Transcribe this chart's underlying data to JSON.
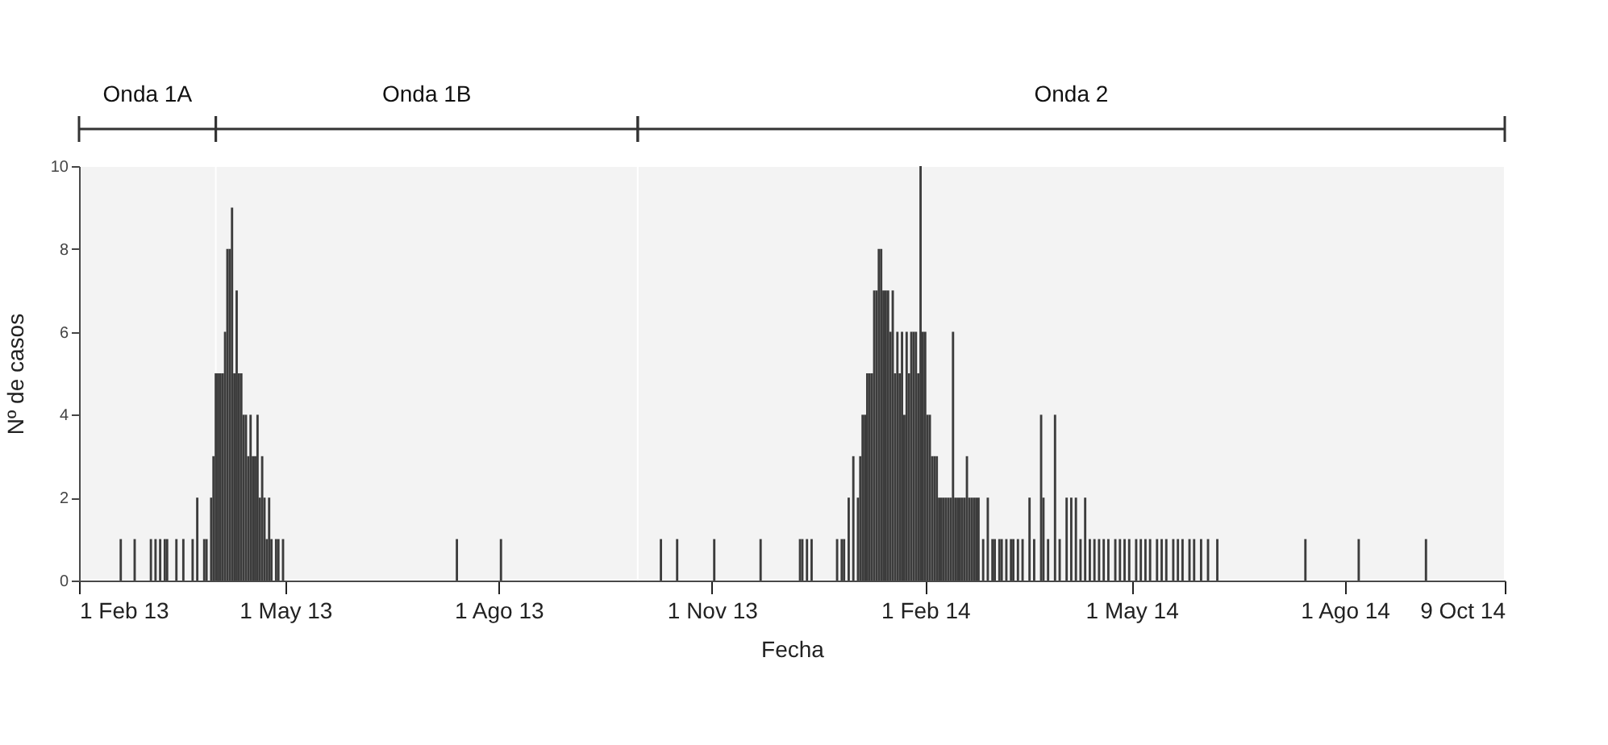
{
  "chart_data": {
    "type": "bar",
    "xlabel": "Fecha",
    "ylabel": "Nº de casos",
    "x": [
      "2013-02-19",
      "2013-02-25",
      "2013-03-04",
      "2013-03-06",
      "2013-03-08",
      "2013-03-10",
      "2013-03-11",
      "2013-03-15",
      "2013-03-18",
      "2013-03-22",
      "2013-03-24",
      "2013-03-27",
      "2013-03-28",
      "2013-03-30",
      "2013-03-31",
      "2013-04-01",
      "2013-04-02",
      "2013-04-03",
      "2013-04-04",
      "2013-04-05",
      "2013-04-06",
      "2013-04-07",
      "2013-04-08",
      "2013-04-09",
      "2013-04-10",
      "2013-04-11",
      "2013-04-12",
      "2013-04-13",
      "2013-04-14",
      "2013-04-15",
      "2013-04-16",
      "2013-04-17",
      "2013-04-18",
      "2013-04-19",
      "2013-04-20",
      "2013-04-21",
      "2013-04-22",
      "2013-04-23",
      "2013-04-24",
      "2013-04-25",
      "2013-04-27",
      "2013-04-28",
      "2013-04-30",
      "2013-07-14",
      "2013-08-02",
      "2013-10-10",
      "2013-10-17",
      "2013-11-02",
      "2013-11-22",
      "2013-12-09",
      "2013-12-10",
      "2013-12-12",
      "2013-12-14",
      "2013-12-25",
      "2013-12-27",
      "2013-12-28",
      "2013-12-30",
      "2014-01-01",
      "2014-01-03",
      "2014-01-04",
      "2014-01-05",
      "2014-01-06",
      "2014-01-07",
      "2014-01-08",
      "2014-01-09",
      "2014-01-10",
      "2014-01-11",
      "2014-01-12",
      "2014-01-13",
      "2014-01-14",
      "2014-01-15",
      "2014-01-16",
      "2014-01-17",
      "2014-01-18",
      "2014-01-19",
      "2014-01-20",
      "2014-01-21",
      "2014-01-22",
      "2014-01-23",
      "2014-01-24",
      "2014-01-25",
      "2014-01-26",
      "2014-01-27",
      "2014-01-28",
      "2014-01-29",
      "2014-01-30",
      "2014-01-31",
      "2014-02-01",
      "2014-02-02",
      "2014-02-03",
      "2014-02-04",
      "2014-02-05",
      "2014-02-06",
      "2014-02-07",
      "2014-02-08",
      "2014-02-09",
      "2014-02-10",
      "2014-02-11",
      "2014-02-12",
      "2014-02-13",
      "2014-02-14",
      "2014-02-15",
      "2014-02-16",
      "2014-02-17",
      "2014-02-18",
      "2014-02-19",
      "2014-02-20",
      "2014-02-21",
      "2014-02-22",
      "2014-02-23",
      "2014-02-24",
      "2014-02-26",
      "2014-02-28",
      "2014-03-02",
      "2014-03-03",
      "2014-03-05",
      "2014-03-06",
      "2014-03-08",
      "2014-03-10",
      "2014-03-11",
      "2014-03-13",
      "2014-03-15",
      "2014-03-18",
      "2014-03-20",
      "2014-03-23",
      "2014-03-24",
      "2014-03-26",
      "2014-03-29",
      "2014-03-31",
      "2014-04-03",
      "2014-04-05",
      "2014-04-07",
      "2014-04-09",
      "2014-04-11",
      "2014-04-13",
      "2014-04-15",
      "2014-04-17",
      "2014-04-19",
      "2014-04-21",
      "2014-04-24",
      "2014-04-26",
      "2014-04-28",
      "2014-04-30",
      "2014-05-03",
      "2014-05-05",
      "2014-05-07",
      "2014-05-09",
      "2014-05-12",
      "2014-05-14",
      "2014-05-16",
      "2014-05-19",
      "2014-05-21",
      "2014-05-23",
      "2014-05-26",
      "2014-05-28",
      "2014-05-31",
      "2014-06-03",
      "2014-06-07",
      "2014-07-15",
      "2014-08-07",
      "2014-09-05"
    ],
    "series": [
      {
        "color": "#3c3c3c",
        "values": [
          1,
          1,
          1,
          1,
          1,
          1,
          1,
          1,
          1,
          1,
          2,
          1,
          1,
          2,
          3,
          5,
          5,
          5,
          5,
          6,
          8,
          8,
          9,
          5,
          7,
          5,
          5,
          4,
          4,
          3,
          4,
          3,
          3,
          4,
          2,
          3,
          2,
          1,
          2,
          1,
          1,
          1,
          1,
          1,
          1,
          1,
          1,
          1,
          1,
          1,
          1,
          1,
          1,
          1,
          1,
          1,
          2,
          3,
          2,
          3,
          4,
          4,
          5,
          5,
          5,
          7,
          7,
          8,
          8,
          7,
          7,
          7,
          6,
          7,
          5,
          6,
          5,
          6,
          4,
          6,
          5,
          6,
          6,
          6,
          5,
          10,
          6,
          6,
          4,
          4,
          3,
          3,
          3,
          2,
          2,
          2,
          2,
          2,
          2,
          6,
          2,
          2,
          2,
          2,
          2,
          3,
          2,
          2,
          2,
          2,
          2,
          1,
          2,
          1,
          1,
          1,
          1,
          1,
          1,
          1,
          1,
          1,
          2,
          1,
          4,
          2,
          1,
          4,
          1,
          2,
          2,
          2,
          1,
          2,
          1,
          1,
          1,
          1,
          1,
          1,
          1,
          1,
          1,
          1,
          1,
          1,
          1,
          1,
          1,
          1,
          1,
          1,
          1,
          1,
          1,
          1,
          1,
          1,
          1,
          1,
          1
        ]
      }
    ],
    "xlim": [
      "2013-02-01",
      "2014-10-09"
    ],
    "xticks": [
      {
        "value": "2013-02-01",
        "label": "1 Feb 13"
      },
      {
        "value": "2013-05-01",
        "label": "1 May 13"
      },
      {
        "value": "2013-08-01",
        "label": "1 Ago 13"
      },
      {
        "value": "2013-11-01",
        "label": "1 Nov 13"
      },
      {
        "value": "2014-02-01",
        "label": "1 Feb 14"
      },
      {
        "value": "2014-05-01",
        "label": "1 May 14"
      },
      {
        "value": "2014-08-01",
        "label": "1 Ago 14"
      },
      {
        "value": "2014-10-09",
        "label": "9 Oct 14"
      }
    ],
    "ylim": [
      0,
      10
    ],
    "yticks": [
      0,
      2,
      4,
      6,
      8,
      10
    ],
    "bands": [
      {
        "axis": "x",
        "from": "2013-02-01",
        "to": "2013-04-01",
        "label": "Onda 1A"
      },
      {
        "axis": "x",
        "from": "2013-04-01",
        "to": "2013-09-30",
        "label": "Onda 1B"
      },
      {
        "axis": "x",
        "from": "2013-09-30",
        "to": "2014-10-09",
        "label": "Onda 2"
      }
    ]
  }
}
